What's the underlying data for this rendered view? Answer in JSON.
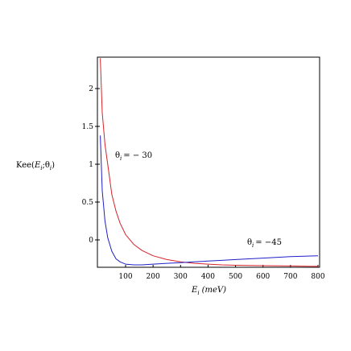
{
  "chart_data": {
    "type": "line",
    "xlabel": {
      "main": "E",
      "sub": "i",
      "unit": "(meV)"
    },
    "ylabel": {
      "prefix": "Kee(",
      "e": "E",
      "e_sub": "i",
      "sep": ";",
      "theta": "θ",
      "theta_sub": "i",
      "suffix": ")"
    },
    "xlim": [
      0,
      800
    ],
    "ylim": [
      -0.4,
      2.4
    ],
    "xticks": [
      100,
      200,
      300,
      400,
      500,
      600,
      700,
      800
    ],
    "yticks": [
      0,
      0.5,
      1,
      1.5,
      2
    ],
    "ytick_labels": [
      "0",
      "0.5",
      "1",
      "1.5",
      "2"
    ],
    "grid": false,
    "series": [
      {
        "color": "#d6232a",
        "annotation": {
          "theta": "θ",
          "sub": "i",
          "text": "= − 30"
        },
        "x": [
          8,
          15,
          25,
          35,
          50,
          65,
          80,
          100,
          130,
          160,
          200,
          250,
          300,
          350,
          400,
          450,
          500,
          600,
          700,
          800
        ],
        "y": [
          2.4,
          1.68,
          1.26,
          1.0,
          0.6,
          0.38,
          0.22,
          0.07,
          -0.06,
          -0.14,
          -0.21,
          -0.26,
          -0.29,
          -0.31,
          -0.32,
          -0.33,
          -0.335,
          -0.34,
          -0.345,
          -0.35
        ]
      },
      {
        "color": "#1f1fc8",
        "annotation": {
          "theta": "θ",
          "sub": "i",
          "text": "= −45"
        },
        "x": [
          8,
          15,
          25,
          35,
          50,
          65,
          80,
          100,
          130,
          160,
          200,
          250,
          300,
          350,
          400,
          450,
          500,
          600,
          700,
          800
        ],
        "y": [
          1.38,
          0.65,
          0.25,
          0.03,
          -0.15,
          -0.25,
          -0.29,
          -0.32,
          -0.33,
          -0.33,
          -0.32,
          -0.31,
          -0.3,
          -0.29,
          -0.28,
          -0.27,
          -0.26,
          -0.24,
          -0.22,
          -0.21
        ]
      }
    ]
  }
}
